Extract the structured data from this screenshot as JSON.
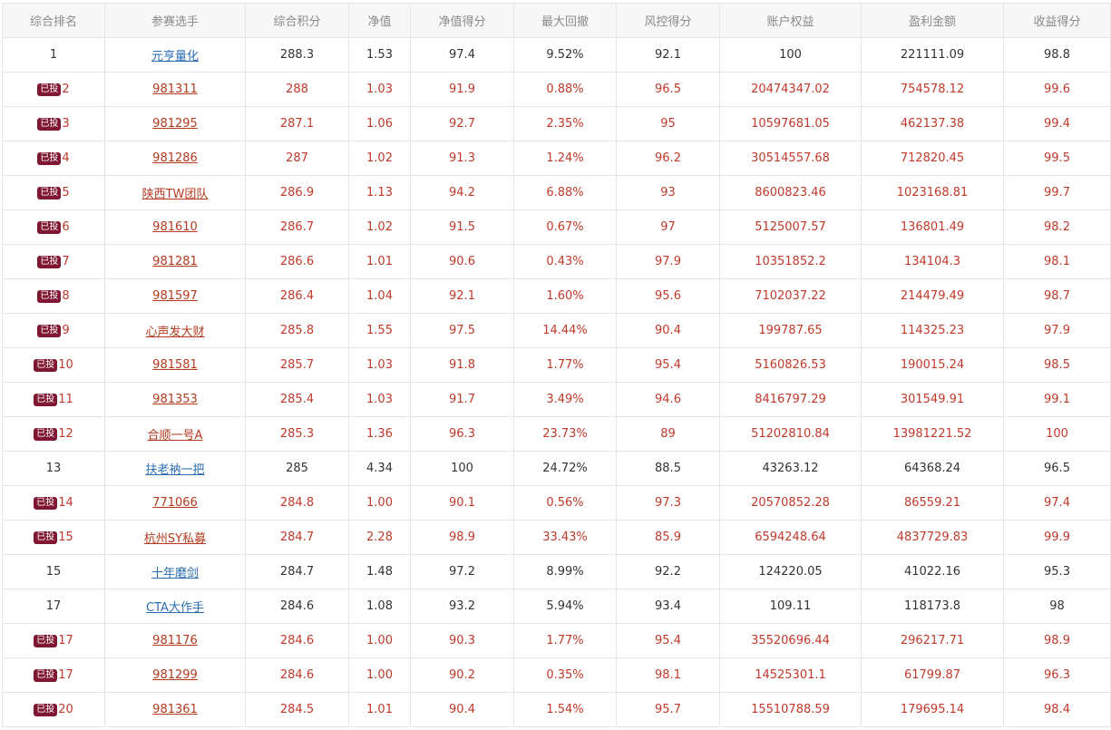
{
  "headers": [
    "综合排名",
    "参赛选手",
    "综合积分",
    "净值",
    "净值得分",
    "最大回撤",
    "风控得分",
    "账户权益",
    "盈利金额",
    "收益得分"
  ],
  "badge_label": "已投",
  "colors": {
    "invested_text": "#c0392b",
    "badge_bg": "#7f1733",
    "normal_link": "#2b6cb0"
  },
  "rows": [
    {
      "rank": "1",
      "invested": false,
      "name": "元亨量化",
      "score": "288.3",
      "nav": "1.53",
      "nav_score": "97.4",
      "max_drawdown": "9.52%",
      "risk_score": "92.1",
      "equity": "100",
      "profit": "221111.09",
      "return_score": "98.8"
    },
    {
      "rank": "2",
      "invested": true,
      "name": "981311",
      "score": "288",
      "nav": "1.03",
      "nav_score": "91.9",
      "max_drawdown": "0.88%",
      "risk_score": "96.5",
      "equity": "20474347.02",
      "profit": "754578.12",
      "return_score": "99.6"
    },
    {
      "rank": "3",
      "invested": true,
      "name": "981295",
      "score": "287.1",
      "nav": "1.06",
      "nav_score": "92.7",
      "max_drawdown": "2.35%",
      "risk_score": "95",
      "equity": "10597681.05",
      "profit": "462137.38",
      "return_score": "99.4"
    },
    {
      "rank": "4",
      "invested": true,
      "name": "981286",
      "score": "287",
      "nav": "1.02",
      "nav_score": "91.3",
      "max_drawdown": "1.24%",
      "risk_score": "96.2",
      "equity": "30514557.68",
      "profit": "712820.45",
      "return_score": "99.5"
    },
    {
      "rank": "5",
      "invested": true,
      "name": "陕西TW团队",
      "score": "286.9",
      "nav": "1.13",
      "nav_score": "94.2",
      "max_drawdown": "6.88%",
      "risk_score": "93",
      "equity": "8600823.46",
      "profit": "1023168.81",
      "return_score": "99.7"
    },
    {
      "rank": "6",
      "invested": true,
      "name": "981610",
      "score": "286.7",
      "nav": "1.02",
      "nav_score": "91.5",
      "max_drawdown": "0.67%",
      "risk_score": "97",
      "equity": "5125007.57",
      "profit": "136801.49",
      "return_score": "98.2"
    },
    {
      "rank": "7",
      "invested": true,
      "name": "981281",
      "score": "286.6",
      "nav": "1.01",
      "nav_score": "90.6",
      "max_drawdown": "0.43%",
      "risk_score": "97.9",
      "equity": "10351852.2",
      "profit": "134104.3",
      "return_score": "98.1"
    },
    {
      "rank": "8",
      "invested": true,
      "name": "981597",
      "score": "286.4",
      "nav": "1.04",
      "nav_score": "92.1",
      "max_drawdown": "1.60%",
      "risk_score": "95.6",
      "equity": "7102037.22",
      "profit": "214479.49",
      "return_score": "98.7"
    },
    {
      "rank": "9",
      "invested": true,
      "name": "心声发大财",
      "score": "285.8",
      "nav": "1.55",
      "nav_score": "97.5",
      "max_drawdown": "14.44%",
      "risk_score": "90.4",
      "equity": "199787.65",
      "profit": "114325.23",
      "return_score": "97.9"
    },
    {
      "rank": "10",
      "invested": true,
      "name": "981581",
      "score": "285.7",
      "nav": "1.03",
      "nav_score": "91.8",
      "max_drawdown": "1.77%",
      "risk_score": "95.4",
      "equity": "5160826.53",
      "profit": "190015.24",
      "return_score": "98.5"
    },
    {
      "rank": "11",
      "invested": true,
      "name": "981353",
      "score": "285.4",
      "nav": "1.03",
      "nav_score": "91.7",
      "max_drawdown": "3.49%",
      "risk_score": "94.6",
      "equity": "8416797.29",
      "profit": "301549.91",
      "return_score": "99.1"
    },
    {
      "rank": "12",
      "invested": true,
      "name": "合顺一号A",
      "score": "285.3",
      "nav": "1.36",
      "nav_score": "96.3",
      "max_drawdown": "23.73%",
      "risk_score": "89",
      "equity": "51202810.84",
      "profit": "13981221.52",
      "return_score": "100"
    },
    {
      "rank": "13",
      "invested": false,
      "name": "扶老衲一把",
      "score": "285",
      "nav": "4.34",
      "nav_score": "100",
      "max_drawdown": "24.72%",
      "risk_score": "88.5",
      "equity": "43263.12",
      "profit": "64368.24",
      "return_score": "96.5"
    },
    {
      "rank": "14",
      "invested": true,
      "name": "771066",
      "score": "284.8",
      "nav": "1.00",
      "nav_score": "90.1",
      "max_drawdown": "0.56%",
      "risk_score": "97.3",
      "equity": "20570852.28",
      "profit": "86559.21",
      "return_score": "97.4"
    },
    {
      "rank": "15",
      "invested": true,
      "name": "杭州SY私募",
      "score": "284.7",
      "nav": "2.28",
      "nav_score": "98.9",
      "max_drawdown": "33.43%",
      "risk_score": "85.9",
      "equity": "6594248.64",
      "profit": "4837729.83",
      "return_score": "99.9"
    },
    {
      "rank": "15",
      "invested": false,
      "name": "十年磨剑",
      "score": "284.7",
      "nav": "1.48",
      "nav_score": "97.2",
      "max_drawdown": "8.99%",
      "risk_score": "92.2",
      "equity": "124220.05",
      "profit": "41022.16",
      "return_score": "95.3"
    },
    {
      "rank": "17",
      "invested": false,
      "name": "CTA大作手",
      "score": "284.6",
      "nav": "1.08",
      "nav_score": "93.2",
      "max_drawdown": "5.94%",
      "risk_score": "93.4",
      "equity": "109.11",
      "profit": "118173.8",
      "return_score": "98"
    },
    {
      "rank": "17",
      "invested": true,
      "name": "981176",
      "score": "284.6",
      "nav": "1.00",
      "nav_score": "90.3",
      "max_drawdown": "1.77%",
      "risk_score": "95.4",
      "equity": "35520696.44",
      "profit": "296217.71",
      "return_score": "98.9"
    },
    {
      "rank": "17",
      "invested": true,
      "name": "981299",
      "score": "284.6",
      "nav": "1.00",
      "nav_score": "90.2",
      "max_drawdown": "0.35%",
      "risk_score": "98.1",
      "equity": "14525301.1",
      "profit": "61799.87",
      "return_score": "96.3"
    },
    {
      "rank": "20",
      "invested": true,
      "name": "981361",
      "score": "284.5",
      "nav": "1.01",
      "nav_score": "90.4",
      "max_drawdown": "1.54%",
      "risk_score": "95.7",
      "equity": "15510788.59",
      "profit": "179695.14",
      "return_score": "98.4"
    }
  ]
}
